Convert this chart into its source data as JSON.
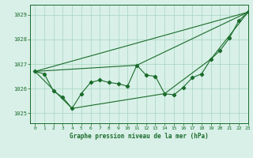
{
  "title": "Graphe pression niveau de la mer (hPa)",
  "background_color": "#d8f0e8",
  "grid_color": "#a8d4c0",
  "line_color": "#1a6b2a",
  "xlim": [
    -0.5,
    23
  ],
  "ylim": [
    1024.6,
    1029.4
  ],
  "yticks": [
    1025,
    1026,
    1027,
    1028,
    1029
  ],
  "xticks": [
    0,
    1,
    2,
    3,
    4,
    5,
    6,
    7,
    8,
    9,
    10,
    11,
    12,
    13,
    14,
    15,
    16,
    17,
    18,
    19,
    20,
    21,
    22,
    23
  ],
  "series": [
    {
      "x": [
        0,
        1,
        2,
        3,
        4,
        5,
        6,
        7,
        8,
        9,
        10,
        11,
        12,
        13,
        14,
        15,
        16,
        17,
        18,
        19,
        20,
        21,
        22,
        23
      ],
      "y": [
        1026.7,
        1026.6,
        1025.9,
        1025.65,
        1025.2,
        1025.8,
        1026.25,
        1026.35,
        1026.25,
        1026.2,
        1026.1,
        1026.95,
        1026.55,
        1026.5,
        1025.8,
        1025.75,
        1026.05,
        1026.45,
        1026.6,
        1027.2,
        1027.55,
        1028.05,
        1028.75,
        1029.1
      ],
      "marker": true
    },
    {
      "x": [
        0,
        23
      ],
      "y": [
        1026.7,
        1029.1
      ],
      "marker": false
    },
    {
      "x": [
        0,
        11,
        23
      ],
      "y": [
        1026.7,
        1026.95,
        1029.1
      ],
      "marker": false
    },
    {
      "x": [
        0,
        4,
        14,
        19,
        23
      ],
      "y": [
        1026.7,
        1025.2,
        1025.8,
        1027.2,
        1029.1
      ],
      "marker": false
    }
  ]
}
